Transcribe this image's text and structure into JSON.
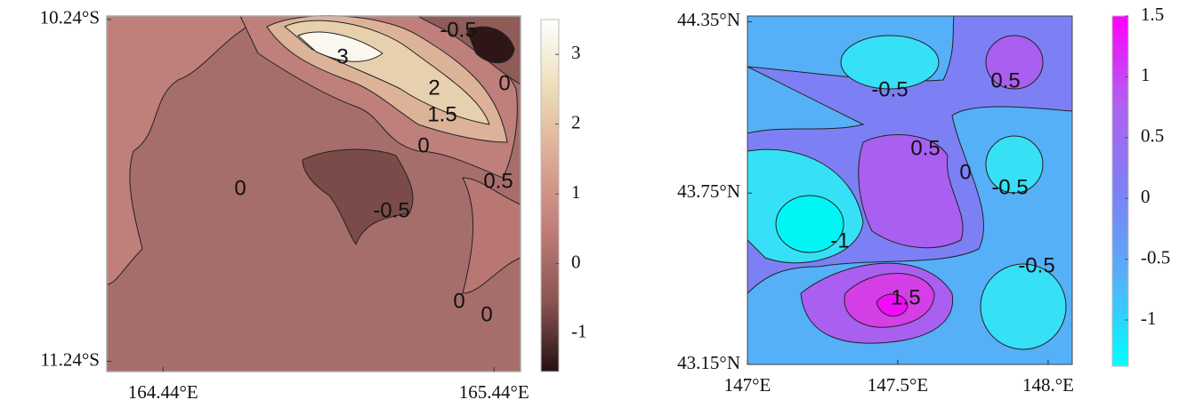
{
  "chart_data": [
    {
      "type": "contour",
      "xlim": [
        164.27,
        165.52
      ],
      "xticks": [
        {
          "value": 164.44,
          "label": "164.44°E"
        },
        {
          "value": 165.44,
          "label": "165.44°E"
        }
      ],
      "ylim": [
        -11.27,
        -10.23
      ],
      "yticks": [
        {
          "value": -11.24,
          "label": "11.24°S"
        },
        {
          "value": -10.24,
          "label": "10.24°S"
        }
      ],
      "colorbar": {
        "lim": [
          -1.55,
          3.5
        ],
        "ticks": [
          -1,
          0,
          1,
          2,
          3
        ],
        "colors": [
          "#241010",
          "#8a5552",
          "#c07c78",
          "#dca893",
          "#ecdcb8",
          "#ffffff"
        ]
      },
      "annotations": [
        "-0.5",
        "3",
        "2",
        "1.5",
        "0",
        "0",
        "0.5",
        "0",
        "-0.5",
        "0",
        "0"
      ]
    },
    {
      "type": "contour",
      "xlim": [
        147,
        148.08
      ],
      "xticks": [
        {
          "value": 147,
          "label": "147°E"
        },
        {
          "value": 147.5,
          "label": "147.5°E"
        },
        {
          "value": 148,
          "label": "148.°E"
        }
      ],
      "ylim": [
        43.15,
        44.37
      ],
      "yticks": [
        {
          "value": 43.15,
          "label": "43.15°N"
        },
        {
          "value": 43.75,
          "label": "43.75°N"
        },
        {
          "value": 44.35,
          "label": "44.35°N"
        }
      ],
      "colorbar": {
        "lim": [
          -1.38,
          1.5
        ],
        "ticks": [
          -1,
          -0.5,
          0,
          0.5,
          1,
          1.5
        ],
        "colors": [
          "#00ffff",
          "#55b0f8",
          "#7d80f5",
          "#b060f0",
          "#ff00ff"
        ]
      },
      "annotations": [
        "-0.5",
        "0.5",
        "0.5",
        "0",
        "-0.5",
        "-1",
        "-0.5",
        "1.5"
      ]
    }
  ]
}
